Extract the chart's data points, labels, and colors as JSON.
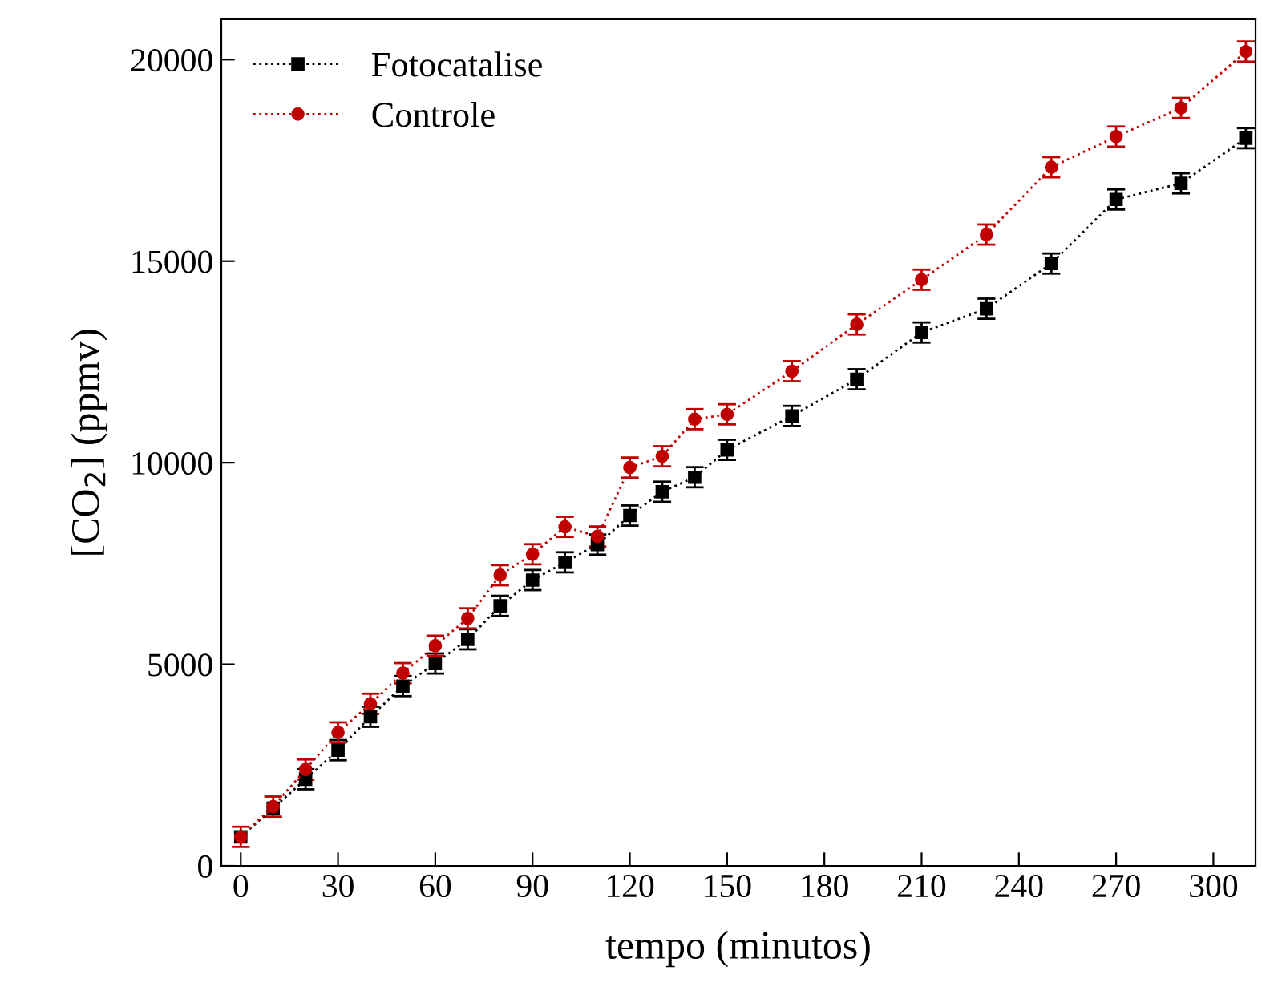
{
  "chart_data": {
    "type": "line",
    "xlabel": "tempo (minutos)",
    "ylabel": "[CO$_{2}$] (ppmv)",
    "xlim": [
      -6,
      313
    ],
    "ylim": [
      0,
      21000
    ],
    "xticks": [
      0,
      30,
      60,
      90,
      120,
      150,
      180,
      210,
      240,
      270,
      300
    ],
    "yticks": [
      0,
      5000,
      10000,
      15000,
      20000
    ],
    "x": [
      0,
      10,
      20,
      30,
      40,
      50,
      60,
      70,
      80,
      90,
      100,
      110,
      120,
      130,
      140,
      150,
      170,
      190,
      210,
      230,
      250,
      270,
      290,
      310
    ],
    "line_style": "dotted",
    "legend": "top left",
    "grid": false,
    "series": [
      {
        "name": "Fotocatalise",
        "color": "#000000",
        "marker": "square",
        "values": [
          720,
          1430,
          2150,
          2870,
          3700,
          4460,
          5020,
          5620,
          6450,
          7090,
          7530,
          7970,
          8690,
          9280,
          9640,
          10320,
          11160,
          12070,
          13230,
          13820,
          14940,
          16530,
          16930,
          18050
        ],
        "errors": [
          null,
          null,
          250,
          250,
          250,
          250,
          250,
          250,
          250,
          250,
          250,
          250,
          250,
          250,
          250,
          250,
          250,
          250,
          250,
          250,
          250,
          250,
          250,
          250
        ]
      },
      {
        "name": "Controle",
        "color": "#c00000",
        "marker": "circle",
        "values": [
          720,
          1470,
          2390,
          3310,
          4020,
          4780,
          5460,
          6140,
          7210,
          7730,
          8410,
          8170,
          9880,
          10160,
          11080,
          11200,
          12270,
          13430,
          14540,
          15660,
          17330,
          18090,
          18800,
          20200
        ],
        "errors": [
          250,
          250,
          250,
          250,
          250,
          250,
          250,
          250,
          250,
          250,
          250,
          250,
          250,
          250,
          250,
          250,
          250,
          250,
          250,
          250,
          250,
          250,
          250,
          250
        ]
      }
    ]
  }
}
